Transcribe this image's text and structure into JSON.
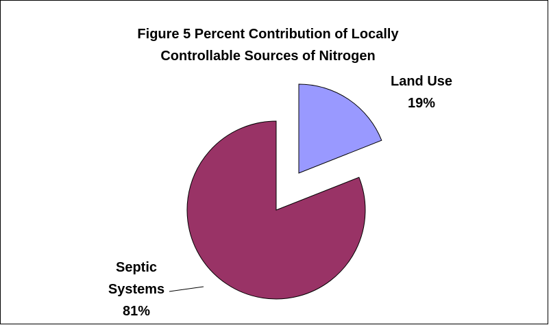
{
  "chart_data": {
    "type": "pie",
    "title": "Figure 5 Percent Contribution of Locally Controllable Sources of Nitrogen",
    "title_lines": [
      "Figure 5 Percent Contribution of Locally",
      "Controllable Sources of Nitrogen"
    ],
    "start_angle_deg": 0,
    "direction": "clockwise",
    "exploded": true,
    "slices": [
      {
        "name": "Land Use",
        "value": 19,
        "label_lines": [
          "Land Use",
          "19%"
        ],
        "color": "#9999ff"
      },
      {
        "name": "Septic Systems",
        "value": 81,
        "label_lines": [
          "Septic",
          "Systems",
          "81%"
        ],
        "color": "#993366"
      }
    ],
    "legend": "none",
    "data_labels": "outside with leader line"
  }
}
